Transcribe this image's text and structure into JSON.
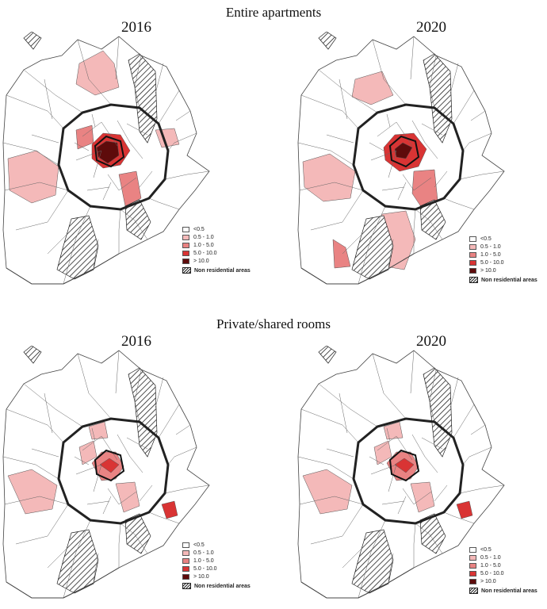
{
  "sections": [
    {
      "title": "Entire apartments"
    },
    {
      "title": "Private/shared rooms"
    }
  ],
  "maps": [
    {
      "year": "2016",
      "level": "high"
    },
    {
      "year": "2020",
      "level": "medium"
    },
    {
      "year": "2016",
      "level": "low"
    },
    {
      "year": "2020",
      "level": "low"
    }
  ],
  "legend": {
    "classes": [
      {
        "label": "<0.5",
        "color": "#ffffff"
      },
      {
        "label": "0.5 - 1.0",
        "color": "#f4b9b9"
      },
      {
        "label": "1.0 - 5.0",
        "color": "#e98383"
      },
      {
        "label": "5.0 - 10.0",
        "color": "#d93434"
      },
      {
        "label": "> 10.0",
        "color": "#5e0b0b"
      }
    ],
    "non_residential": "Non residential areas"
  }
}
